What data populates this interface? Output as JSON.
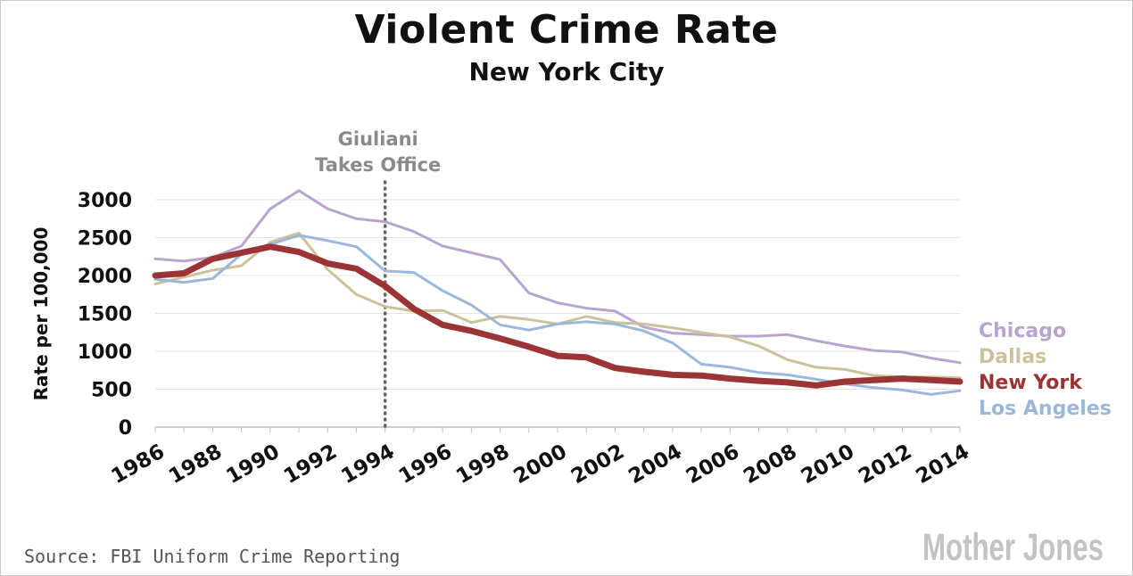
{
  "title": "Violent Crime Rate",
  "subtitle": "New York City",
  "source": "Source: FBI Uniform Crime Reporting",
  "logo_text": "Mother Jones",
  "colors": {
    "chicago": "#b9a4cf",
    "dallas": "#cbc29a",
    "new_york": "#9b3535",
    "los_angeles": "#9bb8db",
    "grid": "#e3e3e3",
    "annotation": "#666666"
  },
  "chart_data": {
    "type": "line",
    "title": "Violent Crime Rate",
    "subtitle": "New York City",
    "xlabel": "",
    "ylabel": "Rate per 100,000",
    "ylim": [
      0,
      3000
    ],
    "yticks": [
      0,
      500,
      1000,
      1500,
      2000,
      2500,
      3000
    ],
    "xlim": [
      1986,
      2014
    ],
    "xticks": [
      1986,
      1988,
      1990,
      1992,
      1994,
      1996,
      1998,
      2000,
      2002,
      2004,
      2006,
      2008,
      2010,
      2012,
      2014
    ],
    "x": [
      1986,
      1987,
      1988,
      1989,
      1990,
      1991,
      1992,
      1993,
      1994,
      1995,
      1996,
      1997,
      1998,
      1999,
      2000,
      2001,
      2002,
      2003,
      2004,
      2005,
      2006,
      2007,
      2008,
      2009,
      2010,
      2011,
      2012,
      2013,
      2014
    ],
    "series": [
      {
        "name": "Chicago",
        "key": "chicago",
        "values": [
          2220,
          2190,
          2240,
          2390,
          2880,
          3120,
          2880,
          2750,
          2710,
          2580,
          2390,
          2300,
          2210,
          1770,
          1640,
          1570,
          1530,
          1320,
          1240,
          1220,
          1200,
          1200,
          1220,
          1140,
          1070,
          1010,
          990,
          910,
          850
        ]
      },
      {
        "name": "Dallas",
        "key": "dallas",
        "values": [
          1890,
          1980,
          2070,
          2130,
          2440,
          2560,
          2080,
          1750,
          1590,
          1530,
          1540,
          1380,
          1460,
          1420,
          1360,
          1460,
          1380,
          1360,
          1310,
          1250,
          1190,
          1070,
          890,
          790,
          760,
          680,
          660,
          660,
          650
        ]
      },
      {
        "name": "New York",
        "key": "new_york",
        "values": [
          2000,
          2030,
          2220,
          2300,
          2380,
          2310,
          2160,
          2090,
          1860,
          1560,
          1350,
          1270,
          1170,
          1060,
          940,
          920,
          780,
          730,
          690,
          680,
          640,
          610,
          590,
          550,
          600,
          620,
          640,
          620,
          600
        ]
      },
      {
        "name": "Los Angeles",
        "key": "los_angeles",
        "values": [
          1950,
          1910,
          1960,
          2280,
          2410,
          2530,
          2460,
          2380,
          2060,
          2040,
          1800,
          1610,
          1350,
          1280,
          1360,
          1390,
          1360,
          1270,
          1110,
          830,
          790,
          720,
          690,
          630,
          570,
          520,
          490,
          430,
          480
        ]
      }
    ],
    "legend": [
      "Chicago",
      "Dallas",
      "New York",
      "Los Angeles"
    ],
    "legend_position": "right",
    "annotation": {
      "x": 1994,
      "lines": [
        "Giuliani",
        "Takes Office"
      ],
      "style": "dotted vertical line"
    },
    "grid": true
  }
}
